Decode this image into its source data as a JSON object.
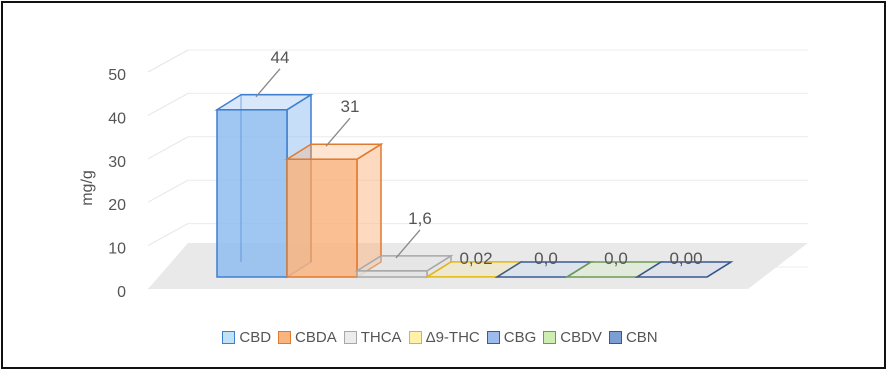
{
  "chart_data": {
    "type": "bar",
    "style": "3d-column",
    "ylabel": "mg/g",
    "ylim": [
      0,
      50
    ],
    "yticks": [
      "0",
      "10",
      "20",
      "30",
      "40",
      "50"
    ],
    "grid": true,
    "legend_position": "bottom",
    "categories": [
      "CBD",
      "CBDA",
      "THCA",
      "Δ9-THC",
      "CBG",
      "CBDV",
      "CBN"
    ],
    "values": [
      44,
      31,
      1.6,
      0.02,
      0.0,
      0.0,
      0.0
    ],
    "data_labels": [
      "44",
      "31",
      "1,6",
      "0,02",
      "0,0",
      "0,0",
      "0,00"
    ],
    "colors": {
      "CBD": {
        "fill": "#8ebdf0",
        "stroke": "#3f7fcf",
        "legend": "#bfe3f5"
      },
      "CBDA": {
        "fill": "#f9b47f",
        "stroke": "#e07a2e",
        "legend": "#f9b47f"
      },
      "THCA": {
        "fill": "#e3e3e3",
        "stroke": "#a8a8a8",
        "legend": "#ececec"
      },
      "Δ9-THC": {
        "fill": "#fbe7a3",
        "stroke": "#e3b80e",
        "legend": "#fff2a8"
      },
      "CBG": {
        "fill": "#c7d9f2",
        "stroke": "#3c5a93",
        "legend": "#9dbcee"
      },
      "CBDV": {
        "fill": "#d8efc4",
        "stroke": "#6e9a57",
        "legend": "#cdeeb0"
      },
      "CBN": {
        "fill": "#cfd9ea",
        "stroke": "#38578f",
        "legend": "#7b9fd3"
      }
    }
  }
}
